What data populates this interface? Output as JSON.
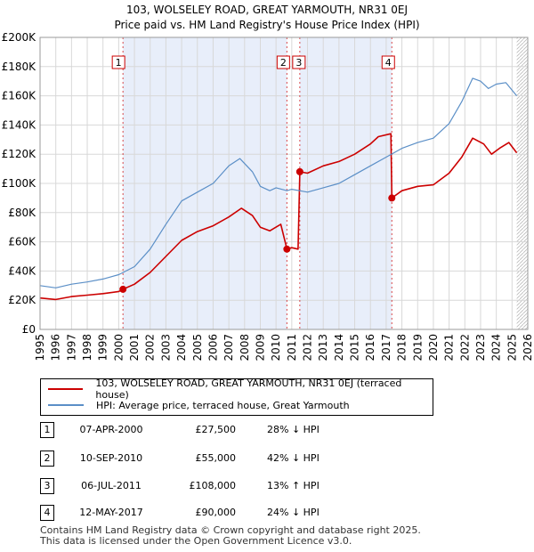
{
  "title_line1": "103, WOLSELEY ROAD, GREAT YARMOUTH, NR31 0EJ",
  "title_line2": "Price paid vs. HM Land Registry's House Price Index (HPI)",
  "colors": {
    "price": "#cc0000",
    "hpi": "#5b8fc7",
    "shade": "#e8eefa",
    "marker_line": "#cc0000"
  },
  "chart_data": {
    "type": "line",
    "xlim": [
      1995,
      2026
    ],
    "ylim": [
      0,
      200000
    ],
    "yticks": [
      0,
      20000,
      40000,
      60000,
      80000,
      100000,
      120000,
      140000,
      160000,
      180000,
      200000
    ],
    "ytick_labels": [
      "£0",
      "£20K",
      "£40K",
      "£60K",
      "£80K",
      "£100K",
      "£120K",
      "£140K",
      "£160K",
      "£180K",
      "£200K"
    ],
    "xticks": [
      1995,
      1996,
      1997,
      1998,
      1999,
      2000,
      2001,
      2002,
      2003,
      2004,
      2005,
      2006,
      2007,
      2008,
      2009,
      2010,
      2011,
      2012,
      2013,
      2014,
      2015,
      2016,
      2017,
      2018,
      2019,
      2020,
      2021,
      2022,
      2023,
      2024,
      2025,
      2026
    ],
    "xtick_labels": [
      "1995",
      "1996",
      "1997",
      "1998",
      "1999",
      "2000",
      "2001",
      "2002",
      "2003",
      "2004",
      "2005",
      "2006",
      "2007",
      "2008",
      "2009",
      "2010",
      "2011",
      "2012",
      "2013",
      "2014",
      "2015",
      "2016",
      "2017",
      "2018",
      "2019",
      "2020",
      "2021",
      "2022",
      "2023",
      "2024",
      "2025",
      "2026"
    ],
    "grid": true,
    "series": [
      {
        "name": "103, WOLSELEY ROAD, GREAT YARMOUTH, NR31 0EJ (terraced house)",
        "color": "#cc0000",
        "points": [
          [
            1995.0,
            21500
          ],
          [
            1996.0,
            20500
          ],
          [
            1997.0,
            22500
          ],
          [
            1998.0,
            23500
          ],
          [
            1999.0,
            24500
          ],
          [
            2000.0,
            26000
          ],
          [
            2000.27,
            27500
          ],
          [
            2001.0,
            31000
          ],
          [
            2002.0,
            39000
          ],
          [
            2003.0,
            50000
          ],
          [
            2004.0,
            61000
          ],
          [
            2005.0,
            67000
          ],
          [
            2006.0,
            71000
          ],
          [
            2007.0,
            77000
          ],
          [
            2007.8,
            83000
          ],
          [
            2008.5,
            78000
          ],
          [
            2009.0,
            70000
          ],
          [
            2009.6,
            67500
          ],
          [
            2010.3,
            72000
          ],
          [
            2010.69,
            55000
          ],
          [
            2011.0,
            56000
          ],
          [
            2011.4,
            55000
          ],
          [
            2011.51,
            108000
          ],
          [
            2012.0,
            107000
          ],
          [
            2013.0,
            112000
          ],
          [
            2014.0,
            115000
          ],
          [
            2015.0,
            120000
          ],
          [
            2016.0,
            127000
          ],
          [
            2016.5,
            132000
          ],
          [
            2017.3,
            134000
          ],
          [
            2017.36,
            90000
          ],
          [
            2018.0,
            95000
          ],
          [
            2019.0,
            98000
          ],
          [
            2020.0,
            99000
          ],
          [
            2021.0,
            107000
          ],
          [
            2021.8,
            118000
          ],
          [
            2022.5,
            131000
          ],
          [
            2023.2,
            127000
          ],
          [
            2023.7,
            120000
          ],
          [
            2024.2,
            124000
          ],
          [
            2024.8,
            128000
          ],
          [
            2025.3,
            121000
          ]
        ]
      },
      {
        "name": "HPI: Average price, terraced house, Great Yarmouth",
        "color": "#5b8fc7",
        "points": [
          [
            1995.0,
            30000
          ],
          [
            1996.0,
            28500
          ],
          [
            1997.0,
            31000
          ],
          [
            1998.0,
            32500
          ],
          [
            1999.0,
            34500
          ],
          [
            2000.0,
            37500
          ],
          [
            2001.0,
            43000
          ],
          [
            2002.0,
            55000
          ],
          [
            2003.0,
            72000
          ],
          [
            2004.0,
            88000
          ],
          [
            2005.0,
            94000
          ],
          [
            2006.0,
            100000
          ],
          [
            2007.0,
            112000
          ],
          [
            2007.7,
            117000
          ],
          [
            2008.5,
            108000
          ],
          [
            2009.0,
            98000
          ],
          [
            2009.6,
            95000
          ],
          [
            2010.0,
            97000
          ],
          [
            2010.7,
            95000
          ],
          [
            2011.0,
            96000
          ],
          [
            2011.5,
            95000
          ],
          [
            2012.0,
            94000
          ],
          [
            2013.0,
            97000
          ],
          [
            2014.0,
            100000
          ],
          [
            2015.0,
            106000
          ],
          [
            2016.0,
            112000
          ],
          [
            2017.0,
            118000
          ],
          [
            2018.0,
            124000
          ],
          [
            2019.0,
            128000
          ],
          [
            2020.0,
            131000
          ],
          [
            2021.0,
            141000
          ],
          [
            2021.8,
            156000
          ],
          [
            2022.5,
            172000
          ],
          [
            2023.0,
            170000
          ],
          [
            2023.5,
            165000
          ],
          [
            2024.0,
            168000
          ],
          [
            2024.6,
            169000
          ],
          [
            2025.3,
            160000
          ]
        ]
      }
    ],
    "sales": [
      {
        "n": "1",
        "x": 2000.27,
        "y": 27500
      },
      {
        "n": "2",
        "x": 2010.69,
        "y": 55000
      },
      {
        "n": "3",
        "x": 2011.51,
        "y": 108000
      },
      {
        "n": "4",
        "x": 2017.36,
        "y": 90000
      }
    ],
    "shaded_ranges": [
      [
        2000.27,
        2010.69
      ],
      [
        2011.51,
        2017.36
      ]
    ],
    "hatched_from": 2025.3
  },
  "legend": {
    "price_label": "103, WOLSELEY ROAD, GREAT YARMOUTH, NR31 0EJ (terraced house)",
    "hpi_label": "HPI: Average price, terraced house, Great Yarmouth"
  },
  "transactions": [
    {
      "num": "1",
      "date": "07-APR-2000",
      "price": "£27,500",
      "hpi": "28% ↓ HPI"
    },
    {
      "num": "2",
      "date": "10-SEP-2010",
      "price": "£55,000",
      "hpi": "42% ↓ HPI"
    },
    {
      "num": "3",
      "date": "06-JUL-2011",
      "price": "£108,000",
      "hpi": "13% ↑ HPI"
    },
    {
      "num": "4",
      "date": "12-MAY-2017",
      "price": "£90,000",
      "hpi": "24% ↓ HPI"
    }
  ],
  "footer_line1": "Contains HM Land Registry data © Crown copyright and database right 2025.",
  "footer_line2": "This data is licensed under the Open Government Licence v3.0."
}
